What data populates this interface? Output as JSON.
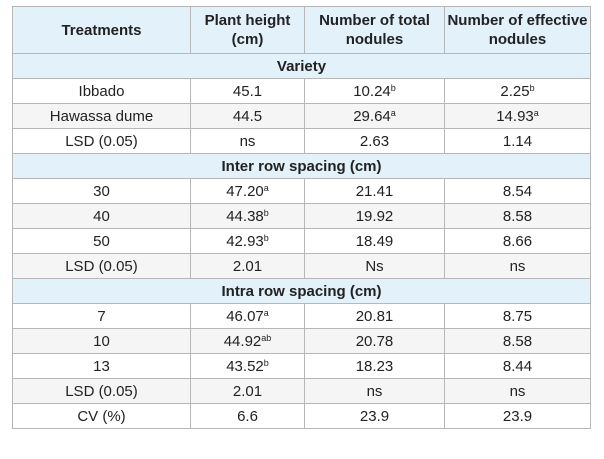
{
  "table": {
    "headers": [
      "Treatments",
      "Plant height (cm)",
      "Number of total nodules",
      "Number of effective nodules"
    ],
    "sections": [
      {
        "title": "Variety",
        "rows": [
          [
            {
              "v": "Ibbado"
            },
            {
              "v": "45.1"
            },
            {
              "v": "10.24",
              "s": "b"
            },
            {
              "v": "2.25",
              "s": "b"
            }
          ],
          [
            {
              "v": "Hawassa dume"
            },
            {
              "v": "44.5"
            },
            {
              "v": "29.64",
              "s": "a"
            },
            {
              "v": "14.93",
              "s": "a"
            }
          ],
          [
            {
              "v": "LSD (0.05)"
            },
            {
              "v": "ns"
            },
            {
              "v": "2.63"
            },
            {
              "v": "1.14"
            }
          ]
        ]
      },
      {
        "title": "Inter row spacing (cm)",
        "rows": [
          [
            {
              "v": "30"
            },
            {
              "v": "47.20",
              "s": "a"
            },
            {
              "v": "21.41"
            },
            {
              "v": "8.54"
            }
          ],
          [
            {
              "v": "40"
            },
            {
              "v": "44.38",
              "s": "b"
            },
            {
              "v": "19.92"
            },
            {
              "v": "8.58"
            }
          ],
          [
            {
              "v": "50"
            },
            {
              "v": "42.93",
              "s": "b"
            },
            {
              "v": "18.49"
            },
            {
              "v": "8.66"
            }
          ],
          [
            {
              "v": "LSD (0.05)"
            },
            {
              "v": "2.01"
            },
            {
              "v": "Ns"
            },
            {
              "v": "ns"
            }
          ]
        ]
      },
      {
        "title": "Intra row spacing (cm)",
        "rows": [
          [
            {
              "v": "7"
            },
            {
              "v": "46.07",
              "s": "a"
            },
            {
              "v": "20.81"
            },
            {
              "v": "8.75"
            }
          ],
          [
            {
              "v": "10"
            },
            {
              "v": "44.92",
              "s": "ab"
            },
            {
              "v": "20.78"
            },
            {
              "v": "8.58"
            }
          ],
          [
            {
              "v": "13"
            },
            {
              "v": "43.52",
              "s": "b"
            },
            {
              "v": "18.23"
            },
            {
              "v": "8.44"
            }
          ],
          [
            {
              "v": "LSD (0.05)"
            },
            {
              "v": "2.01"
            },
            {
              "v": "ns"
            },
            {
              "v": "ns"
            }
          ],
          [
            {
              "v": "CV (%)"
            },
            {
              "v": "6.6"
            },
            {
              "v": "23.9"
            },
            {
              "v": "23.9"
            }
          ]
        ]
      }
    ]
  }
}
